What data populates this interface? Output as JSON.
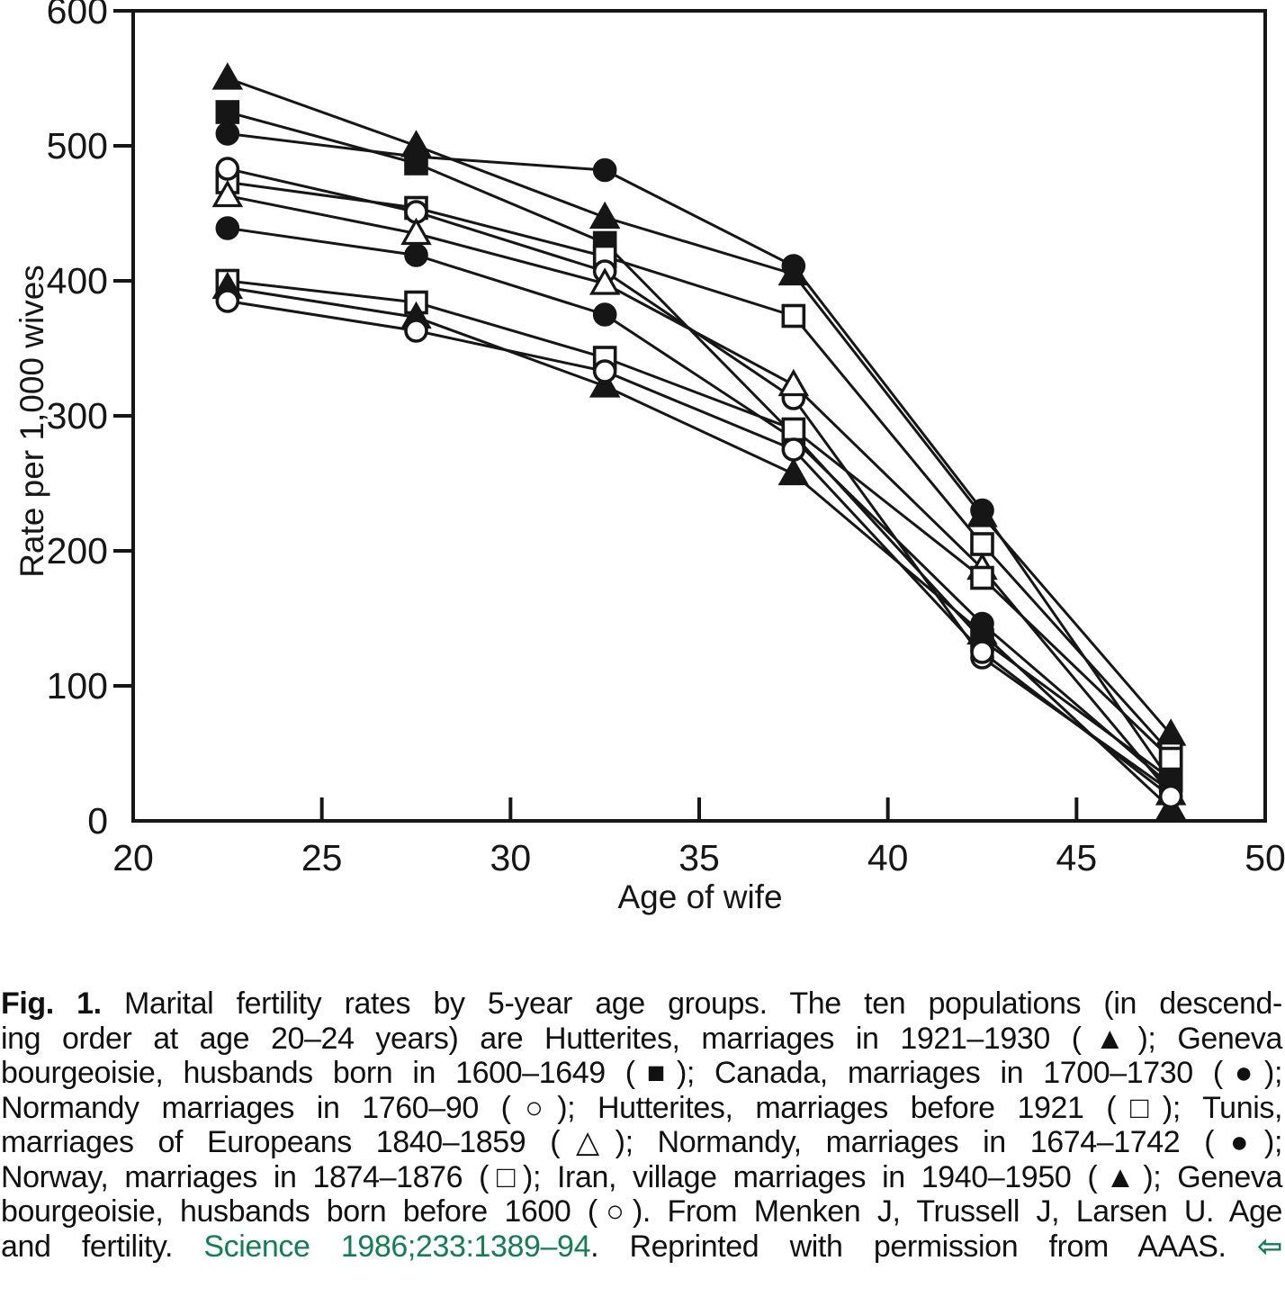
{
  "figure": {
    "caption": {
      "lines": [
        {
          "segments": [
            {
              "text": "Fig. 1.",
              "style": "bold"
            },
            {
              "text": " Marital fertility rates by 5-year age groups. The ten populations (in descend-",
              "style": "plain"
            }
          ]
        },
        {
          "segments": [
            {
              "text": "ing order at age 20–24 years) are Hutterites, marriages in 1921–1930 (▲); Geneva",
              "style": "plain"
            }
          ]
        },
        {
          "segments": [
            {
              "text": "bourgeoisie, husbands born in 1600–1649 (■); Canada, marriages in 1700–1730 (●);",
              "style": "plain"
            }
          ]
        },
        {
          "segments": [
            {
              "text": "Normandy marriages in 1760–90 (○); Hutterites, marriages before 1921 (□); Tunis,",
              "style": "plain"
            }
          ]
        },
        {
          "segments": [
            {
              "text": "marriages of Europeans 1840–1859 (△); Normandy, marriages in 1674–1742 (●);",
              "style": "plain"
            }
          ]
        },
        {
          "segments": [
            {
              "text": "Norway, marriages in 1874–1876 (□); Iran, village marriages in 1940–1950 (▲); Geneva",
              "style": "plain"
            }
          ]
        },
        {
          "segments": [
            {
              "text": "bourgeoisie, husbands born before 1600 (○). From Menken J, Trussell J, Larsen U. Age",
              "style": "plain"
            }
          ]
        },
        {
          "segments": [
            {
              "text": "and fertility. ",
              "style": "plain"
            },
            {
              "text": "Science 1986;233:1389–94",
              "style": "link"
            },
            {
              "text": ". Reprinted with permission from AAAS. ",
              "style": "plain"
            },
            {
              "text": "⇦",
              "style": "arrow"
            }
          ]
        }
      ]
    }
  },
  "chart_data": {
    "type": "line",
    "title": "",
    "xlabel": "Age of wife",
    "ylabel": "Rate per 1,000 wives",
    "x": [
      22.5,
      27.5,
      32.5,
      37.5,
      42.5,
      47.5
    ],
    "x_ticks": [
      20,
      25,
      30,
      35,
      40,
      45,
      50
    ],
    "y_ticks": [
      0,
      100,
      200,
      300,
      400,
      500,
      600
    ],
    "xlim": [
      20,
      50
    ],
    "ylim": [
      0,
      600
    ],
    "grid": false,
    "legend_position": "none",
    "frame": "box",
    "series": [
      {
        "name": "Hutterites, marriages in 1921-1930",
        "marker": "triangle-filled",
        "values": [
          550,
          500,
          447,
          405,
          226,
          64
        ]
      },
      {
        "name": "Geneva bourgeoisie, husbands born in 1600-1649",
        "marker": "square-filled",
        "values": [
          525,
          487,
          428,
          286,
          134,
          31
        ]
      },
      {
        "name": "Canada, marriages in 1700-1730",
        "marker": "circle-filled",
        "values": [
          509,
          492,
          482,
          411,
          230,
          29
        ]
      },
      {
        "name": "Normandy marriages in 1760-90",
        "marker": "circle-open",
        "values": [
          483,
          451,
          407,
          313,
          121,
          22
        ]
      },
      {
        "name": "Hutterites, marriages before 1921",
        "marker": "square-open",
        "values": [
          473,
          454,
          418,
          374,
          205,
          50
        ]
      },
      {
        "name": "Tunis, marriages of Europeans 1840-1859",
        "marker": "triangle-open",
        "values": [
          463,
          435,
          398,
          323,
          187,
          20
        ]
      },
      {
        "name": "Normandy, marriages in 1674-1742",
        "marker": "circle-filled",
        "values": [
          439,
          419,
          375,
          283,
          146,
          26
        ]
      },
      {
        "name": "Norway, marriages in 1874-1876",
        "marker": "square-open",
        "values": [
          400,
          384,
          343,
          290,
          180,
          46
        ]
      },
      {
        "name": "Iran, village marriages in 1940-1950",
        "marker": "triangle-filled",
        "values": [
          395,
          373,
          322,
          257,
          139,
          9
        ]
      },
      {
        "name": "Geneva bourgeoisie, husbands born before 1600",
        "marker": "circle-open",
        "values": [
          385,
          363,
          333,
          275,
          125,
          18
        ]
      }
    ]
  },
  "colors": {
    "ink": "#161616",
    "link_green": "#108051",
    "background": "#ffffff"
  }
}
